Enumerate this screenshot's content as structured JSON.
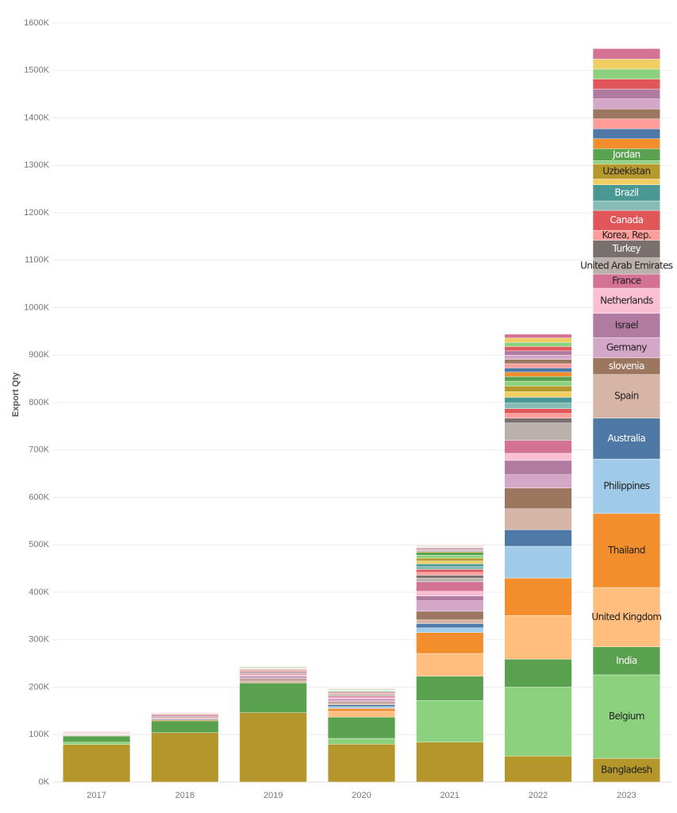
{
  "chart_data": {
    "type": "stacked_bar",
    "y_label": "Export Qty",
    "categories": [
      "2017",
      "2018",
      "2019",
      "2020",
      "2021",
      "2022",
      "2023"
    ],
    "ylim": [
      0,
      1600000
    ],
    "yticks": [
      {
        "value": 0,
        "label": "0K"
      },
      {
        "value": 100000,
        "label": "100K"
      },
      {
        "value": 200000,
        "label": "200K"
      },
      {
        "value": 300000,
        "label": "300K"
      },
      {
        "value": 400000,
        "label": "400K"
      },
      {
        "value": 500000,
        "label": "500K"
      },
      {
        "value": 600000,
        "label": "600K"
      },
      {
        "value": 700000,
        "label": "700K"
      },
      {
        "value": 800000,
        "label": "800K"
      },
      {
        "value": 900000,
        "label": "900K"
      },
      {
        "value": 1000000,
        "label": "1000K"
      },
      {
        "value": 1100000,
        "label": "1100K"
      },
      {
        "value": 1200000,
        "label": "1200K"
      },
      {
        "value": 1300000,
        "label": "1300K"
      },
      {
        "value": 1400000,
        "label": "1400K"
      },
      {
        "value": 1500000,
        "label": "1500K"
      },
      {
        "value": 1600000,
        "label": "1600K"
      }
    ],
    "grid": true,
    "series": [
      {
        "name": "Bangladesh",
        "color": "#b5962a",
        "values": [
          79000,
          104000,
          146000,
          80000,
          84000,
          55000,
          50000
        ]
      },
      {
        "name": "Belgium",
        "color": "#8cd17d",
        "values": [
          5000,
          0,
          0,
          12000,
          88000,
          145000,
          176000
        ]
      },
      {
        "name": "India",
        "color": "#59a14f",
        "values": [
          13000,
          25000,
          63000,
          45000,
          51000,
          59000,
          59000
        ]
      },
      {
        "name": "United Kingdom",
        "color": "#ffbe7d",
        "values": [
          0,
          0,
          0,
          12000,
          48000,
          92000,
          125000
        ]
      },
      {
        "name": "Thailand",
        "color": "#f28e2b",
        "values": [
          0,
          0,
          0,
          6000,
          44000,
          79000,
          156000
        ]
      },
      {
        "name": "Philippines",
        "color": "#a0cbe8",
        "values": [
          0,
          0,
          0,
          4000,
          10000,
          67000,
          115000
        ]
      },
      {
        "name": "Australia",
        "color": "#4e79a7",
        "values": [
          0,
          0,
          0,
          4000,
          9000,
          35000,
          86000
        ]
      },
      {
        "name": "Spain",
        "color": "#d7b5a6",
        "values": [
          0,
          0,
          5000,
          3000,
          8000,
          44000,
          92000
        ]
      },
      {
        "name": "slovenia",
        "color": "#9d7660",
        "values": [
          0,
          0,
          3000,
          3000,
          18000,
          44000,
          35000
        ]
      },
      {
        "name": "Germany",
        "color": "#d4a6c8",
        "values": [
          0,
          0,
          3000,
          3000,
          22000,
          28000,
          43000
        ]
      },
      {
        "name": "Israel",
        "color": "#b07aa1",
        "values": [
          0,
          0,
          3000,
          3000,
          10000,
          30000,
          51000
        ]
      },
      {
        "name": "Netherlands",
        "color": "#fabfd2",
        "values": [
          0,
          0,
          3000,
          3000,
          10000,
          15000,
          53000
        ]
      },
      {
        "name": "France",
        "color": "#d37295",
        "values": [
          0,
          0,
          3000,
          3000,
          20000,
          27000,
          30000
        ]
      },
      {
        "name": "United Arab Emirates",
        "color": "#bab0ac",
        "values": [
          0,
          0,
          2000,
          2000,
          8000,
          37000,
          34000
        ]
      },
      {
        "name": "Turkey",
        "color": "#79706e",
        "values": [
          0,
          0,
          2000,
          2000,
          6000,
          10000,
          37000
        ]
      },
      {
        "name": "Korea, Rep.",
        "color": "#ff9d9a",
        "values": [
          0,
          0,
          2000,
          2000,
          6000,
          10000,
          21000
        ]
      },
      {
        "name": "Canada",
        "color": "#e15759",
        "values": [
          0,
          0,
          2000,
          2000,
          6000,
          10000,
          42000
        ]
      },
      {
        "color": "#86bcb6",
        "values": [
          0,
          0,
          1000,
          2000,
          6000,
          12000,
          20000
        ]
      },
      {
        "name": "Brazil",
        "color": "#499894",
        "values": [
          0,
          0,
          1000,
          1000,
          6000,
          12000,
          34000
        ]
      },
      {
        "color": "#f1ce63",
        "values": [
          0,
          0,
          1000,
          1000,
          6000,
          12000,
          12000
        ]
      },
      {
        "name": "Uzbekistan",
        "color": "#b6992d",
        "values": [
          0,
          0,
          1000,
          1000,
          6000,
          12000,
          32000
        ]
      },
      {
        "color": "#8cd17d",
        "values": [
          0,
          0,
          1000,
          1000,
          6000,
          10000,
          7000
        ]
      },
      {
        "name": "Jordan",
        "color": "#5aa150",
        "values": [
          0,
          0,
          1000,
          1000,
          6000,
          10000,
          25000
        ]
      },
      {
        "color": "#f28e2b",
        "values": [
          1000,
          2000,
          1000,
          1000,
          2000,
          9000,
          21000
        ]
      },
      {
        "color": "#4e79a7",
        "values": [
          1000,
          2000,
          0,
          0,
          2000,
          9000,
          21000
        ]
      },
      {
        "color": "#ff9d9a",
        "values": [
          1000,
          2000,
          0,
          0,
          2000,
          9000,
          21000
        ]
      },
      {
        "color": "#9d7660",
        "values": [
          1000,
          2000,
          0,
          0,
          2000,
          9000,
          21000
        ]
      },
      {
        "color": "#d4a6c8",
        "values": [
          1000,
          2000,
          0,
          0,
          2000,
          9000,
          21000
        ]
      },
      {
        "color": "#b07aa1",
        "values": [
          1000,
          2000,
          0,
          0,
          1000,
          9000,
          21000
        ]
      },
      {
        "color": "#e15759",
        "values": [
          1000,
          2000,
          0,
          0,
          1000,
          9000,
          21000
        ]
      },
      {
        "color": "#8cd17d",
        "values": [
          1000,
          1000,
          0,
          0,
          1000,
          9000,
          21000
        ]
      },
      {
        "color": "#f1ce63",
        "values": [
          1000,
          1000,
          0,
          0,
          1000,
          9000,
          21000
        ]
      },
      {
        "color": "#d37295",
        "values": [
          1000,
          1000,
          0,
          0,
          1000,
          8000,
          22000
        ]
      }
    ]
  }
}
